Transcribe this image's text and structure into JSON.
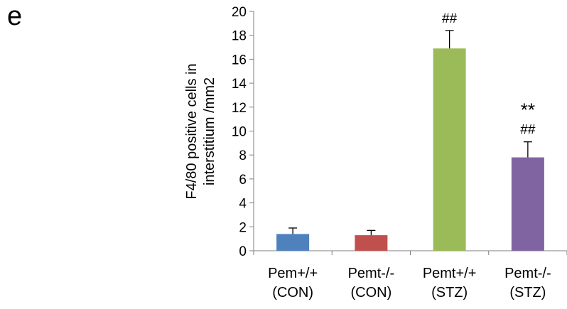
{
  "panel_letter": "e",
  "chart_data": {
    "type": "bar",
    "categories": [
      [
        "Pem+/+",
        "(CON)"
      ],
      [
        "Pemt-/-",
        "(CON)"
      ],
      [
        "Pemt+/+",
        "(STZ)"
      ],
      [
        "Pemt-/-",
        "(STZ)"
      ]
    ],
    "values": [
      1.4,
      1.3,
      16.9,
      7.8
    ],
    "errors": [
      0.5,
      0.4,
      1.5,
      1.3
    ],
    "colors": [
      "#4f81bd",
      "#c0504d",
      "#9bbb59",
      "#8064a2"
    ],
    "annotations": [
      [],
      [],
      [
        "##"
      ],
      [
        "**",
        "##"
      ]
    ],
    "ylabel": [
      "F4/80 positive cells in",
      "interstitium /mm2"
    ],
    "xlabel": "",
    "title": "",
    "ylim": [
      0,
      20
    ],
    "yticks": [
      0,
      2,
      4,
      6,
      8,
      10,
      12,
      14,
      16,
      18,
      20
    ],
    "grid": false,
    "legend": "none"
  }
}
